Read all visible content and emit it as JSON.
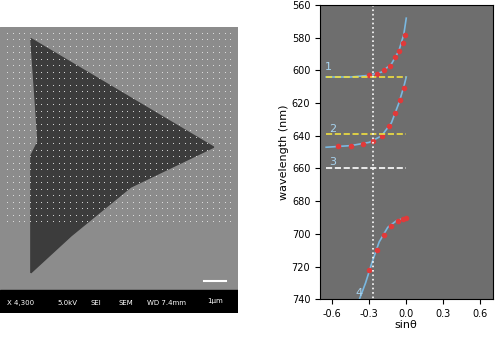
{
  "chart_data": [
    {
      "type": "image",
      "texts": [
        "X 4,300",
        "5.0kV",
        "SEI",
        "SEM",
        "WD 7.4mm"
      ],
      "scale_bar": "1μm",
      "tick_labels": false
    },
    {
      "type": "line",
      "x_label": "sinθ",
      "y_label": "wavelength (nm)",
      "xlim": [
        -0.7,
        0.7
      ],
      "xticks": [
        -0.6,
        -0.3,
        {
          "value": 0,
          "label": "0.0"
        },
        0.3,
        0.6
      ],
      "ylim": [
        740,
        560
      ],
      "yticks": [
        560,
        580,
        600,
        620,
        640,
        660,
        680,
        700,
        720,
        740
      ],
      "series": [
        {
          "color": "#7ab8e0",
          "line_style": "solid",
          "x": [
            -0.65,
            -0.45,
            -0.3,
            -0.2,
            -0.12,
            -0.06,
            -0.02,
            0.0
          ],
          "values": [
            604,
            604,
            603,
            601,
            596,
            588,
            578,
            568
          ]
        },
        {
          "color": "#7ab8e0",
          "line_style": "solid",
          "x": [
            -0.65,
            -0.45,
            -0.3,
            -0.2,
            -0.12,
            -0.06,
            -0.02,
            0.0
          ],
          "values": [
            647,
            646,
            644,
            640,
            632,
            620,
            610,
            604
          ]
        },
        {
          "color": "#7ab8e0",
          "line_style": "solid",
          "x": [
            -0.38,
            -0.33,
            -0.28,
            -0.22,
            -0.15,
            -0.08,
            0.0
          ],
          "values": [
            740,
            730,
            718,
            705,
            696,
            692,
            690
          ]
        },
        {
          "color": "#e03a3a",
          "marker": "o",
          "line_style": "none",
          "x": [
            -0.3,
            -0.24,
            -0.18,
            -0.13,
            -0.09,
            -0.06,
            -0.03,
            -0.01
          ],
          "values": [
            603,
            602,
            600,
            597,
            592,
            588,
            583,
            578
          ]
        },
        {
          "color": "#e03a3a",
          "marker": "o",
          "line_style": "none",
          "x": [
            -0.55,
            -0.45,
            -0.35,
            -0.27,
            -0.2,
            -0.14,
            -0.09,
            -0.05,
            -0.02
          ],
          "values": [
            646,
            646,
            645,
            643,
            640,
            634,
            626,
            618,
            611
          ]
        },
        {
          "color": "#e03a3a",
          "marker": "o",
          "line_style": "none",
          "x": [
            -0.3,
            -0.24,
            -0.18,
            -0.12,
            -0.07,
            -0.03,
            0.0
          ],
          "values": [
            722,
            710,
            701,
            695,
            692,
            691,
            690
          ]
        },
        {
          "color": "#f0e040",
          "line_style": "dashed",
          "x": [
            -0.65,
            0.0
          ],
          "values": [
            604,
            604
          ]
        },
        {
          "color": "#f0e040",
          "line_style": "dashed",
          "x": [
            -0.65,
            0.0
          ],
          "values": [
            639,
            639
          ]
        },
        {
          "color": "#ffffff",
          "line_style": "dashed",
          "x": [
            -0.65,
            0.0
          ],
          "values": [
            660,
            660
          ]
        },
        {
          "color": "#ffffff",
          "line_style": "dotted",
          "x": [
            -0.27,
            -0.27
          ],
          "values": [
            560,
            740
          ]
        }
      ],
      "annotations": [
        {
          "text": "1",
          "x": -0.63,
          "y": 598
        },
        {
          "text": "2",
          "x": -0.6,
          "y": 636
        },
        {
          "text": "3",
          "x": -0.6,
          "y": 656
        },
        {
          "text": "4",
          "x": -0.38,
          "y": 736
        }
      ]
    }
  ]
}
